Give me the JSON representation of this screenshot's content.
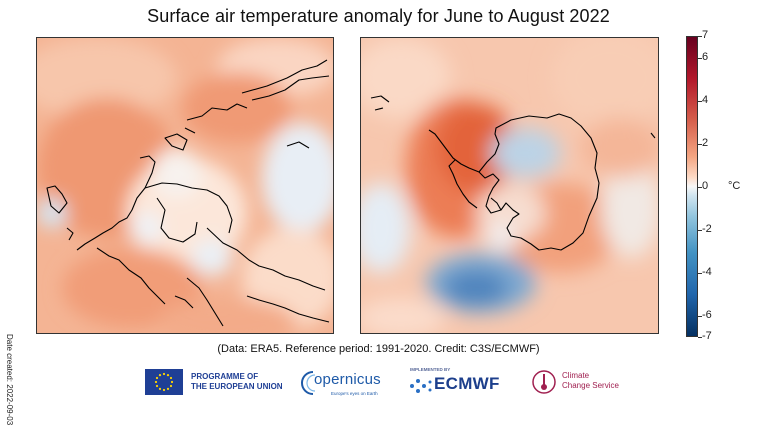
{
  "title": "Surface air temperature anomaly for June to August 2022",
  "date_created": "Date created: 2022-09-03",
  "credit": "(Data: ERA5.  Reference period: 1991-2020.  Credit: C3S/ECMWF)",
  "colorbar": {
    "unit": "°C",
    "ticks": [
      "7",
      "6",
      "4",
      "2",
      "0",
      "-2",
      "-4",
      "-6",
      "-7"
    ],
    "range": [
      -7,
      7
    ],
    "colors": {
      "warm": "#b2182b",
      "neutral": "#f7f7f7",
      "cool": "#2166ac"
    }
  },
  "panels": [
    {
      "region": "north-polar",
      "icon": "arctic-map"
    },
    {
      "region": "south-polar",
      "icon": "antarctic-map"
    }
  ],
  "logos": {
    "eu": "PROGRAMME OF\nTHE EUROPEAN UNION",
    "eu_line1": "PROGRAMME OF",
    "eu_line2": "THE EUROPEAN UNION",
    "copernicus": "opernicus",
    "copernicus_sub": "Europe's eyes on Earth",
    "ecmwf_impl": "IMPLEMENTED BY",
    "ecmwf": "ECMWF",
    "c3s_line1": "Climate",
    "c3s_line2": "Change Service"
  }
}
